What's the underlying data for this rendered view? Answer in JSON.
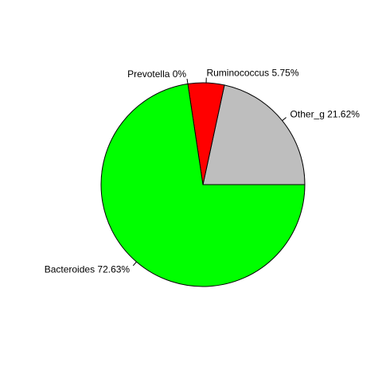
{
  "chart_data": {
    "type": "pie",
    "title": "",
    "direction": "counterclockwise",
    "start": "3 o'clock",
    "border_color": "#000000",
    "slices": [
      {
        "label": "Other_g 21.62%",
        "name": "Other_g",
        "value": 21.62,
        "color": "#BEBEBE"
      },
      {
        "label": "Ruminococcus 5.75%",
        "name": "Ruminococcus",
        "value": 5.75,
        "color": "#FF0000"
      },
      {
        "label": "Prevotella 0%",
        "name": "Prevotella",
        "value": 0,
        "color": "#0000FF"
      },
      {
        "label": "Bacteroides 72.63%",
        "name": "Bacteroides",
        "value": 72.63,
        "color": "#00FF00"
      }
    ]
  }
}
